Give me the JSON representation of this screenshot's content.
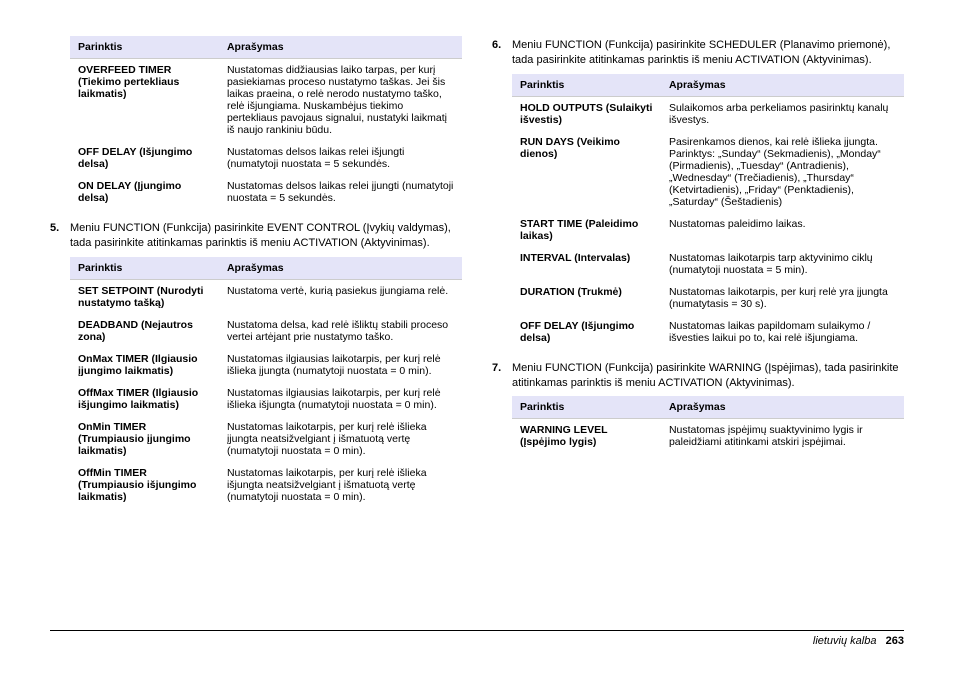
{
  "headers": {
    "option": "Parinktis",
    "desc": "Aprašymas"
  },
  "table1": [
    {
      "opt": "OVERFEED TIMER (Tiekimo pertekliaus laikmatis)",
      "desc": "Nustatomas didžiausias laiko tarpas, per kurį pasiekiamas proceso nustatymo taškas. Jei šis laikas praeina, o relė nerodo nustatymo taško, relė išjungiama. Nuskambėjus tiekimo pertekliaus pavojaus signalui, nustatyki laikmatį iš naujo rankiniu būdu."
    },
    {
      "opt": "OFF DELAY (Išjungimo delsa)",
      "desc": "Nustatomas delsos laikas relei išjungti (numatytoji nuostata = 5 sekundės."
    },
    {
      "opt": "ON DELAY (Įjungimo delsa)",
      "desc": "Nustatomas delsos laikas relei įjungti (numatytoji nuostata = 5 sekundės."
    }
  ],
  "step5": "Meniu FUNCTION (Funkcija) pasirinkite EVENT CONTROL (Įvykių valdymas), tada pasirinkite atitinkamas parinktis iš meniu ACTIVATION (Aktyvinimas).",
  "table2": [
    {
      "opt": "SET SETPOINT (Nurodyti nustatymo tašką)",
      "desc": "Nustatoma vertė, kurią pasiekus įjungiama relė."
    },
    {
      "opt": "DEADBAND (Nejautros zona)",
      "desc": "Nustatoma delsa, kad relė išliktų stabili proceso vertei artėjant prie nustatymo taško."
    },
    {
      "opt": "OnMax TIMER (Ilgiausio įjungimo laikmatis)",
      "desc": "Nustatomas ilgiausias laikotarpis, per kurį relė išlieka įjungta (numatytoji nuostata = 0 min)."
    },
    {
      "opt": "OffMax TIMER (Ilgiausio išjungimo laikmatis)",
      "desc": "Nustatomas ilgiausias laikotarpis, per kurį relė išlieka išjungta (numatytoji nuostata = 0 min)."
    },
    {
      "opt": "OnMin TIMER (Trumpiausio įjungimo laikmatis)",
      "desc": "Nustatomas laikotarpis, per kurį relė išlieka įjungta neatsižvelgiant į išmatuotą vertę (numatytoji nuostata = 0 min)."
    },
    {
      "opt": "OffMin TIMER (Trumpiausio išjungimo laikmatis)",
      "desc": "Nustatomas laikotarpis, per kurį relė išlieka išjungta neatsižvelgiant į išmatuotą vertę (numatytoji nuostata = 0 min)."
    }
  ],
  "step6": "Meniu FUNCTION (Funkcija) pasirinkite SCHEDULER (Planavimo priemonė), tada pasirinkite atitinkamas parinktis iš meniu ACTIVATION (Aktyvinimas).",
  "table3": [
    {
      "opt": "HOLD OUTPUTS (Sulaikyti išvestis)",
      "desc": "Sulaikomos arba perkeliamos pasirinktų kanalų išvestys."
    },
    {
      "opt": "RUN DAYS (Veikimo dienos)",
      "desc": "Pasirenkamos dienos, kai relė išlieka įjungta. Parinktys: „Sunday“ (Sekmadienis), „Monday“ (Pirmadienis), „Tuesday“ (Antradienis), „Wednesday“ (Trečiadienis), „Thursday“ (Ketvirtadienis), „Friday“ (Penktadienis), „Saturday“ (Šeštadienis)"
    },
    {
      "opt": "START TIME (Paleidimo laikas)",
      "desc": "Nustatomas paleidimo laikas."
    },
    {
      "opt": "INTERVAL (Intervalas)",
      "desc": "Nustatomas laikotarpis tarp aktyvinimo ciklų (numatytoji nuostata = 5 min)."
    },
    {
      "opt": "DURATION (Trukmė)",
      "desc": "Nustatomas laikotarpis, per kurį relė yra įjungta (numatytasis = 30 s)."
    },
    {
      "opt": "OFF DELAY (Išjungimo delsa)",
      "desc": "Nustatomas laikas papildomam sulaikymo / išvesties laikui po to, kai relė išjungiama."
    }
  ],
  "step7": "Meniu FUNCTION (Funkcija) pasirinkite WARNING (Įspėjimas), tada pasirinkite atitinkamas parinktis iš meniu ACTIVATION (Aktyvinimas).",
  "table4": [
    {
      "opt": "WARNING LEVEL (Įspėjimo lygis)",
      "desc": "Nustatomas įspėjimų suaktyvinimo lygis ir paleidžiami atitinkami atskiri įspėjimai."
    }
  ],
  "footer": {
    "lang": "lietuvių kalba",
    "page": "263"
  }
}
